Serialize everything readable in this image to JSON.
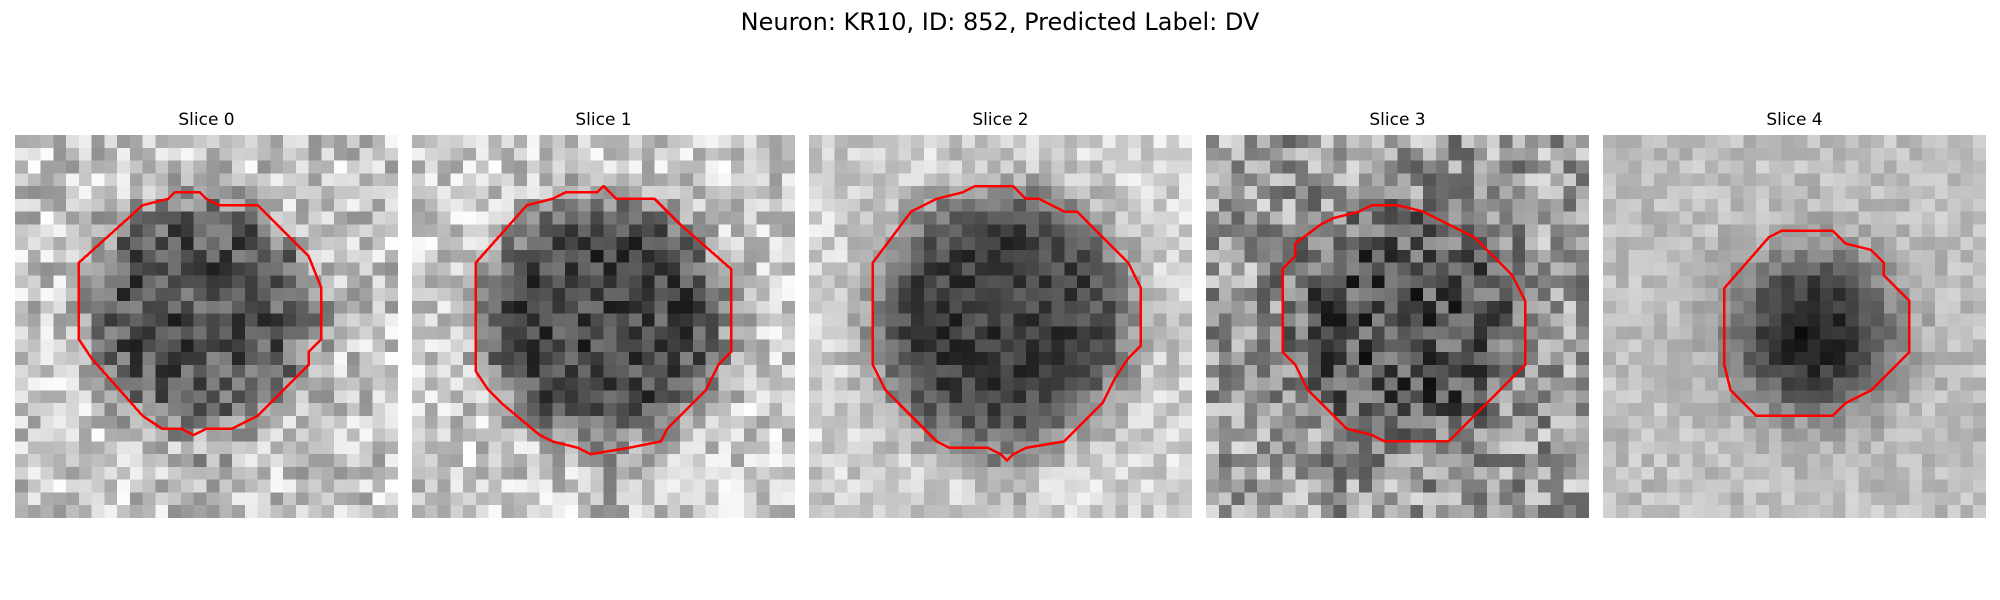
{
  "figure": {
    "title": "Neuron: KR10, ID: 852, Predicted Label: DV",
    "contour_color": "#ff0000",
    "colormap": "gray",
    "grid_size": 30,
    "panels": [
      {
        "title": "Slice 0"
      },
      {
        "title": "Slice 1"
      },
      {
        "title": "Slice 2"
      },
      {
        "title": "Slice 3"
      },
      {
        "title": "Slice 4"
      }
    ]
  }
}
